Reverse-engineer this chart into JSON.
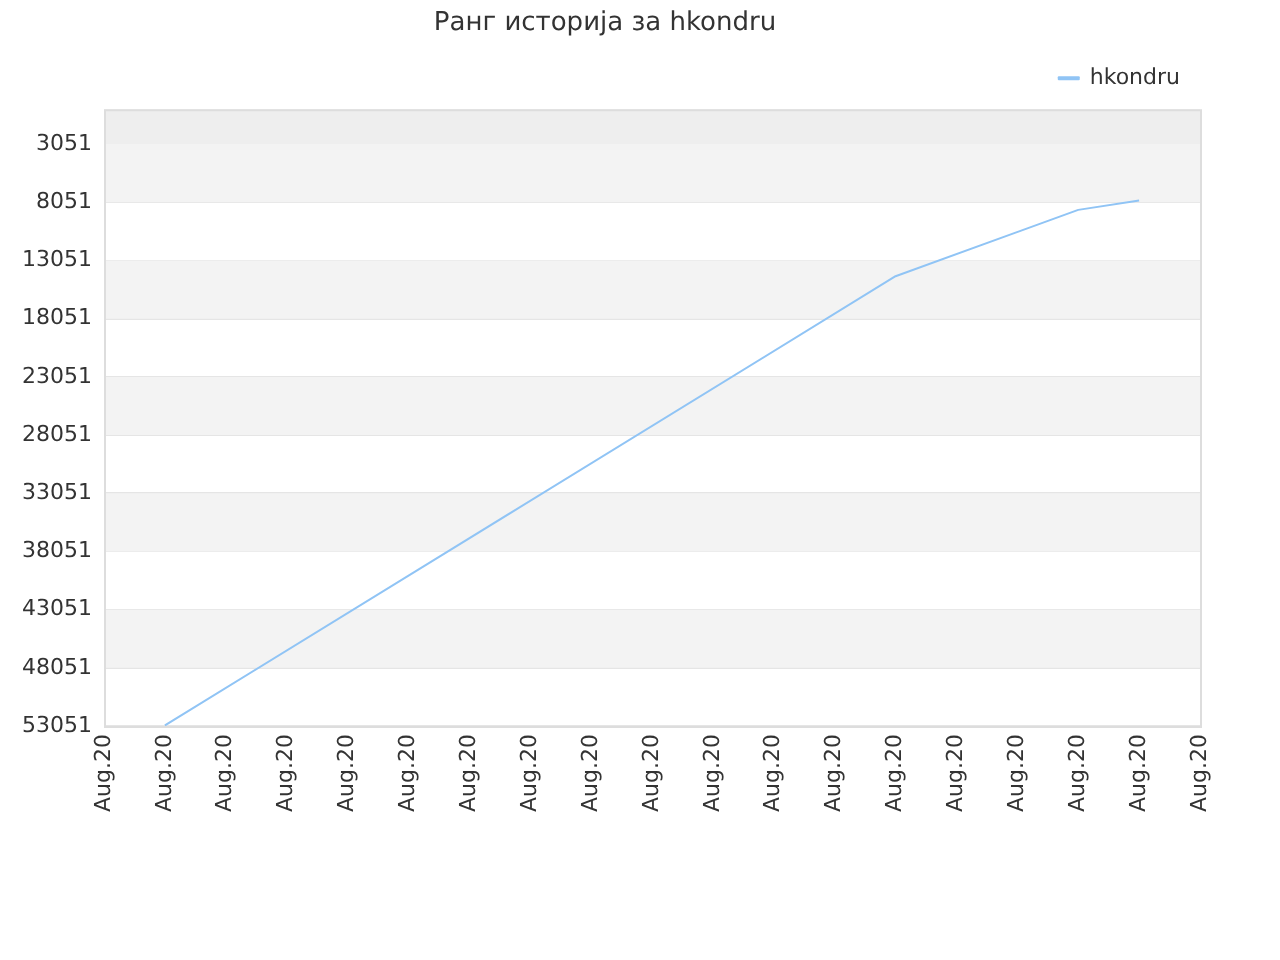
{
  "chart_data": {
    "type": "line",
    "title": "Ранг историја за hkondru",
    "categories": [
      "Aug.20",
      "Aug.20",
      "Aug.20",
      "Aug.20",
      "Aug.20",
      "Aug.20",
      "Aug.20",
      "Aug.20",
      "Aug.20",
      "Aug.20",
      "Aug.20",
      "Aug.20",
      "Aug.20",
      "Aug.20",
      "Aug.20",
      "Aug.20",
      "Aug.20",
      "Aug.20",
      "Aug.20"
    ],
    "series": [
      {
        "name": "hkondru",
        "color": "#90c4f5",
        "values": [
          null,
          53000,
          null,
          null,
          null,
          null,
          null,
          null,
          null,
          null,
          null,
          null,
          null,
          14400,
          null,
          null,
          8700,
          7900,
          null
        ]
      }
    ],
    "ylim": [
      53051,
      51
    ],
    "yticks": [
      3051,
      8051,
      13051,
      18051,
      23051,
      28051,
      33051,
      38051,
      43051,
      48051,
      53051
    ],
    "bands": [
      {
        "axis": "y",
        "from": 51,
        "to": 3051,
        "color": "#eeeeee"
      },
      {
        "axis": "y",
        "from": 3051,
        "to": 8051,
        "color": "#f3f3f3"
      },
      {
        "axis": "y",
        "from": 13051,
        "to": 18051,
        "color": "#f3f3f3"
      },
      {
        "axis": "y",
        "from": 23051,
        "to": 28051,
        "color": "#f3f3f3"
      },
      {
        "axis": "y",
        "from": 33051,
        "to": 38051,
        "color": "#f3f3f3"
      },
      {
        "axis": "y",
        "from": 43051,
        "to": 48051,
        "color": "#f3f3f3"
      }
    ],
    "grid": "y",
    "legend": "top right",
    "marker": "none",
    "line_style": "solid"
  }
}
